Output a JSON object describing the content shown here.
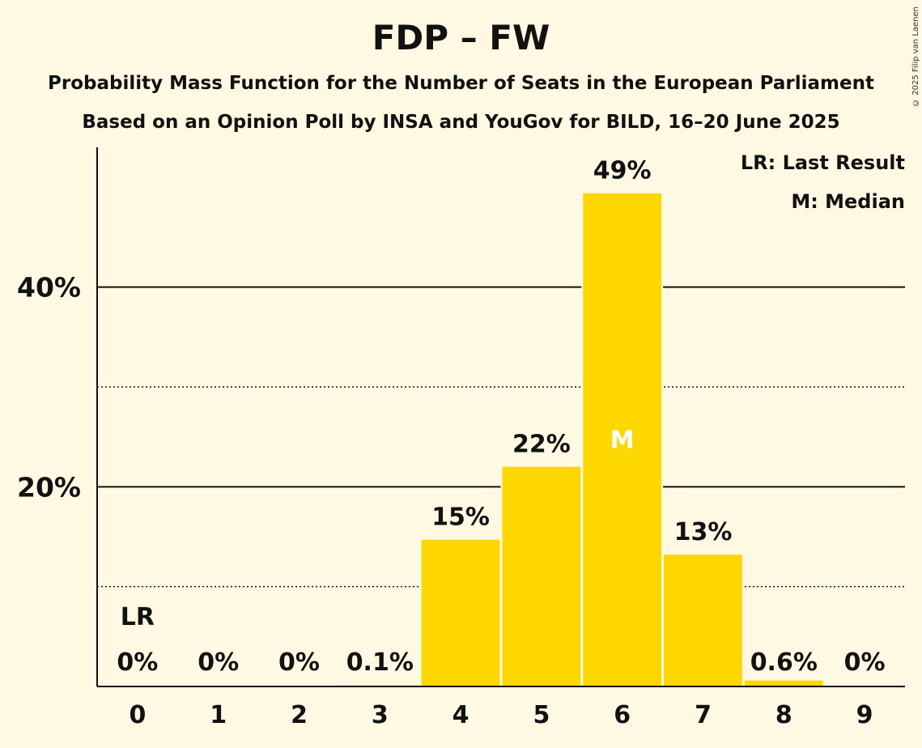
{
  "title": "FDP – FW",
  "subtitle": "Probability Mass Function for the Number of Seats in the European Parliament",
  "subtitle2": "Based on an Opinion Poll by INSA and YouGov for BILD, 16–20 June 2025",
  "copyright": "© 2025 Filip van Laenen",
  "legend": {
    "last_result": "LR: Last Result",
    "median": "M: Median"
  },
  "colors": {
    "bar": "#ffd700",
    "background": "#fff8e2"
  },
  "chart_data": {
    "type": "bar",
    "categories": [
      "0",
      "1",
      "2",
      "3",
      "4",
      "5",
      "6",
      "7",
      "8",
      "9"
    ],
    "values": [
      0,
      0,
      0,
      0.1,
      14.7,
      22.0,
      49.4,
      13.2,
      0.6,
      0
    ],
    "value_labels": [
      "0%",
      "0%",
      "0%",
      "0.1%",
      "15%",
      "22%",
      "49%",
      "13%",
      "0.6%",
      "0%"
    ],
    "ylim": [
      0,
      54
    ],
    "y_ticks_major": [
      20,
      40
    ],
    "y_tick_labels": [
      "20%",
      "40%"
    ],
    "y_ticks_minor": [
      10,
      30
    ],
    "median_index": 6,
    "median_label": "M",
    "last_result_index": 0,
    "last_result_label": "LR"
  }
}
